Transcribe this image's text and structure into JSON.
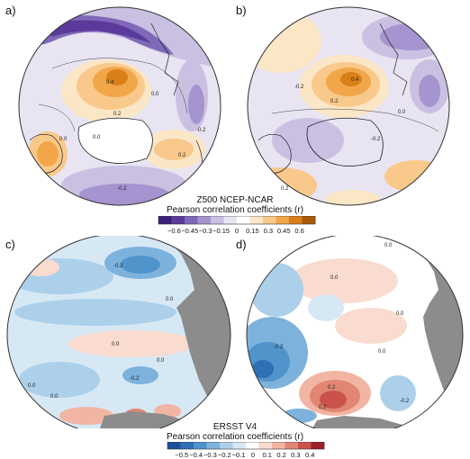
{
  "panels": {
    "a": {
      "letter": "a)"
    },
    "b": {
      "letter": "b)"
    },
    "c": {
      "letter": "c)"
    },
    "d": {
      "letter": "d)"
    }
  },
  "top_colorbar": {
    "title_line1": "Z500 NCEP-NCAR",
    "title_line2": "Pearson correlation coefficients (r)",
    "ticks": [
      "-0.6",
      "-0.45",
      "-0.3",
      "-0.15",
      "0",
      "0.15",
      "0.3",
      "0.45",
      "0.6"
    ]
  },
  "bottom_colorbar": {
    "title_line1": "ERSST V4",
    "title_line2": "Pearson correlation coefficients (r)",
    "ticks": [
      "-0.5",
      "-0.4",
      "-0.3",
      "-0.2",
      "-0.1",
      "0",
      "0.1",
      "0.2",
      "0.3",
      "0.4"
    ]
  },
  "contour_labels": {
    "a": [
      "0.4",
      "0.0",
      "0.2",
      "0.0",
      "0.2",
      "-0.2",
      "0.0",
      "-0.2"
    ],
    "b": [
      "0.4",
      "0.2",
      "-0.2",
      "0.0",
      "-0.2",
      "0.2"
    ],
    "c": [
      "-0.2",
      "0.0",
      "0.0",
      "-0.2",
      "0.0",
      "0.0",
      "0.0"
    ],
    "d": [
      "0.0",
      "0.0",
      "-0.2",
      "0.2",
      "0.0",
      "0.0",
      "0.2",
      "-0.2"
    ]
  },
  "colors": {
    "z500": [
      "#3b1f7a",
      "#5a3a9a",
      "#8068b8",
      "#a594cf",
      "#c9c0e2",
      "#e8e4f2",
      "#ffffff",
      "#fbe6c6",
      "#f8c98a",
      "#f2a64a",
      "#d97f18",
      "#a85a0a"
    ],
    "sst": [
      "#1b4f9a",
      "#2f6fb6",
      "#5094cc",
      "#7db2dc",
      "#acd0ea",
      "#d7e8f5",
      "#ffffff",
      "#fadbd0",
      "#f2b5a3",
      "#e08673",
      "#c9534a",
      "#9c1f2b"
    ],
    "land": "#8c8c8c"
  }
}
